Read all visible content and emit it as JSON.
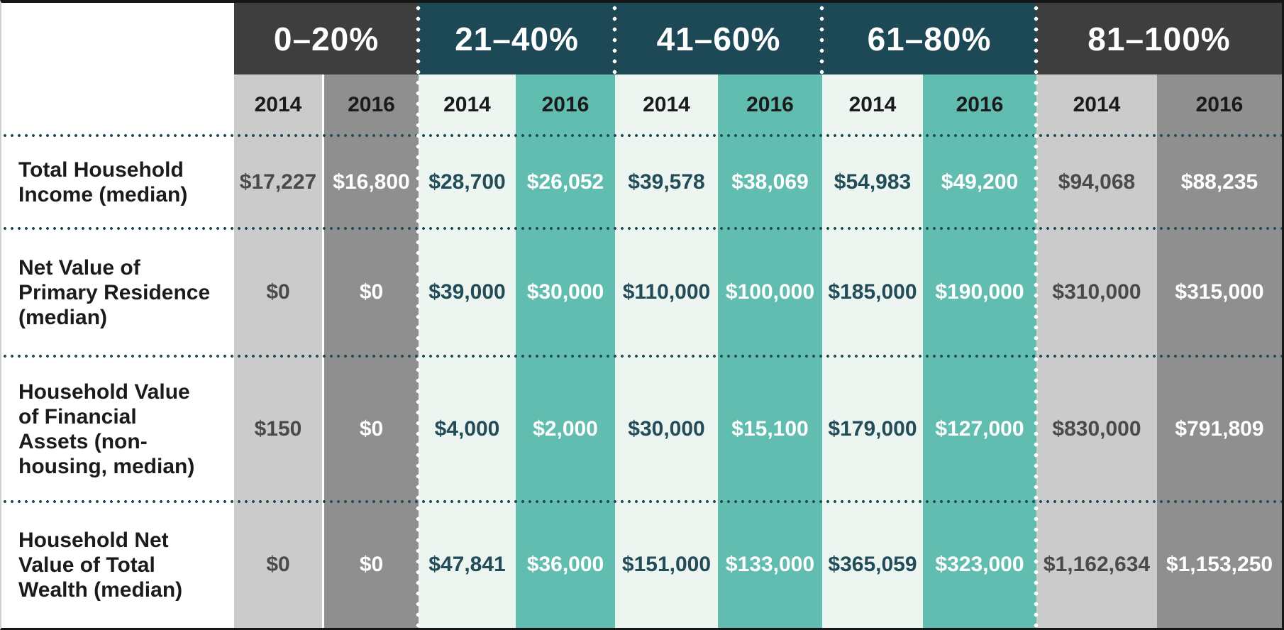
{
  "table": {
    "corner_label": "",
    "groups": [
      {
        "label": "0–20%",
        "theme": "gray"
      },
      {
        "label": "21–40%",
        "theme": "teal"
      },
      {
        "label": "41–60%",
        "theme": "teal"
      },
      {
        "label": "61–80%",
        "theme": "teal"
      },
      {
        "label": "81–100%",
        "theme": "gray"
      }
    ],
    "years": [
      "2014",
      "2016"
    ],
    "rows": [
      {
        "label": "Total Household\nIncome (median)",
        "values": [
          "$17,227",
          "$16,800",
          "$28,700",
          "$26,052",
          "$39,578",
          "$38,069",
          "$54,983",
          "$49,200",
          "$94,068",
          "$88,235"
        ]
      },
      {
        "label": "Net Value of\nPrimary Residence\n(median)",
        "values": [
          "$0",
          "$0",
          "$39,000",
          "$30,000",
          "$110,000",
          "$100,000",
          "$185,000",
          "$190,000",
          "$310,000",
          "$315,000"
        ]
      },
      {
        "label": "Household Value\nof Financial\nAssets (non-\nhousing, median)",
        "values": [
          "$150",
          "$0",
          "$4,000",
          "$2,000",
          "$30,000",
          "$15,100",
          "$179,000",
          "$127,000",
          "$830,000",
          "$791,809"
        ]
      },
      {
        "label": "Household Net\nValue of Total\nWealth (median)",
        "values": [
          "$0",
          "$0",
          "$47,841",
          "$36,000",
          "$151,000",
          "$133,000",
          "$365,059",
          "$323,000",
          "$1,162,634",
          "$1,153,250"
        ]
      }
    ],
    "colors": {
      "header_gray": "#3e3e3e",
      "header_teal": "#1d4956",
      "column_gray_2014": "#cbcbcb",
      "column_gray_2016": "#8f8f8f",
      "column_teal_2014": "#edf5f0",
      "column_teal_2016": "#60bdaf",
      "text_navy": "#234c59",
      "text_dark_gray": "#4a4a4a",
      "text_white": "#ffffff",
      "text_black": "#1b1b1b",
      "separator_dots": "#234c59",
      "group_separator_dots": "#ffffff"
    }
  },
  "chart_data": {
    "type": "table",
    "column_groups": [
      "0–20%",
      "21–40%",
      "41–60%",
      "61–80%",
      "81–100%"
    ],
    "sub_columns": [
      "2014",
      "2016"
    ],
    "units": "USD",
    "rows": [
      {
        "label": "Total Household Income (median)",
        "values_2014": [
          17227,
          28700,
          39578,
          54983,
          94068
        ],
        "values_2016": [
          16800,
          26052,
          38069,
          49200,
          88235
        ]
      },
      {
        "label": "Net Value of Primary Residence (median)",
        "values_2014": [
          0,
          39000,
          110000,
          185000,
          310000
        ],
        "values_2016": [
          0,
          30000,
          100000,
          190000,
          315000
        ]
      },
      {
        "label": "Household Value of Financial Assets (non-housing, median)",
        "values_2014": [
          150,
          4000,
          30000,
          179000,
          830000
        ],
        "values_2016": [
          0,
          2000,
          15100,
          127000,
          791809
        ]
      },
      {
        "label": "Household Net Value of Total Wealth (median)",
        "values_2014": [
          0,
          47841,
          151000,
          365059,
          1162634
        ],
        "values_2016": [
          0,
          36000,
          133000,
          323000,
          1153250
        ]
      }
    ]
  }
}
